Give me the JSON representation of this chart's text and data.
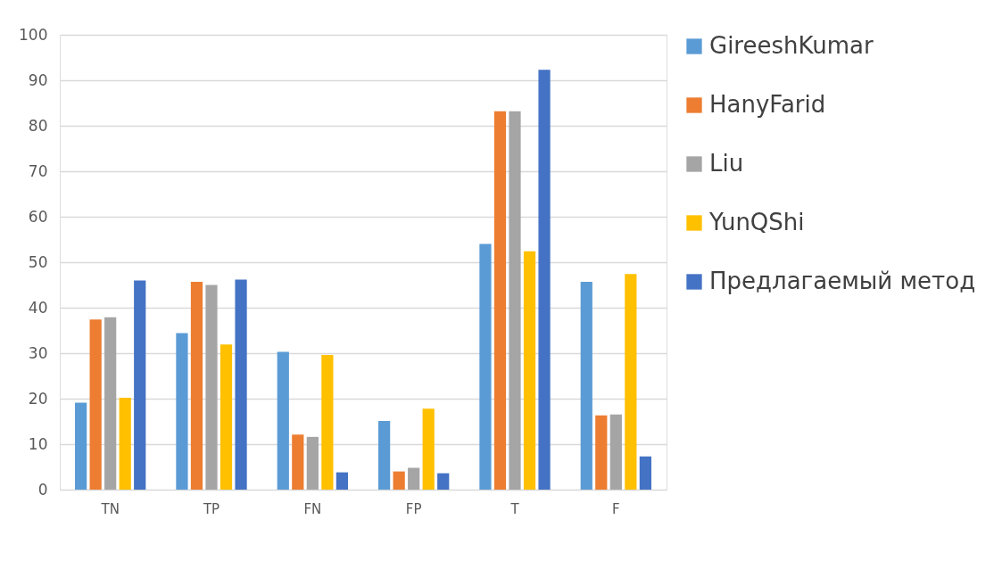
{
  "chart_data": {
    "type": "bar",
    "categories": [
      "TN",
      "TP",
      "FN",
      "FP",
      "T",
      "F"
    ],
    "series": [
      {
        "name": "GireeshKumar",
        "color": "#5b9bd5",
        "values": [
          19.1,
          34.4,
          30.3,
          15.1,
          54.0,
          45.7
        ]
      },
      {
        "name": "HanyFarid",
        "color": "#ed7d31",
        "values": [
          37.4,
          45.7,
          12.1,
          4.0,
          83.2,
          16.3
        ]
      },
      {
        "name": "Liu",
        "color": "#a5a5a5",
        "values": [
          37.9,
          45.0,
          11.6,
          4.8,
          83.2,
          16.5
        ]
      },
      {
        "name": "YunQShi",
        "color": "#ffc000",
        "values": [
          20.2,
          31.9,
          29.6,
          17.8,
          52.4,
          47.4
        ]
      },
      {
        "name": "Предлагаемый метод",
        "color": "#4472c4",
        "values": [
          46.0,
          46.2,
          3.8,
          3.6,
          92.3,
          7.3
        ]
      }
    ],
    "ylim": [
      0,
      100
    ],
    "yticks": [
      0,
      10,
      20,
      30,
      40,
      50,
      60,
      70,
      80,
      90,
      100
    ],
    "grid": "y",
    "legend": "right"
  }
}
